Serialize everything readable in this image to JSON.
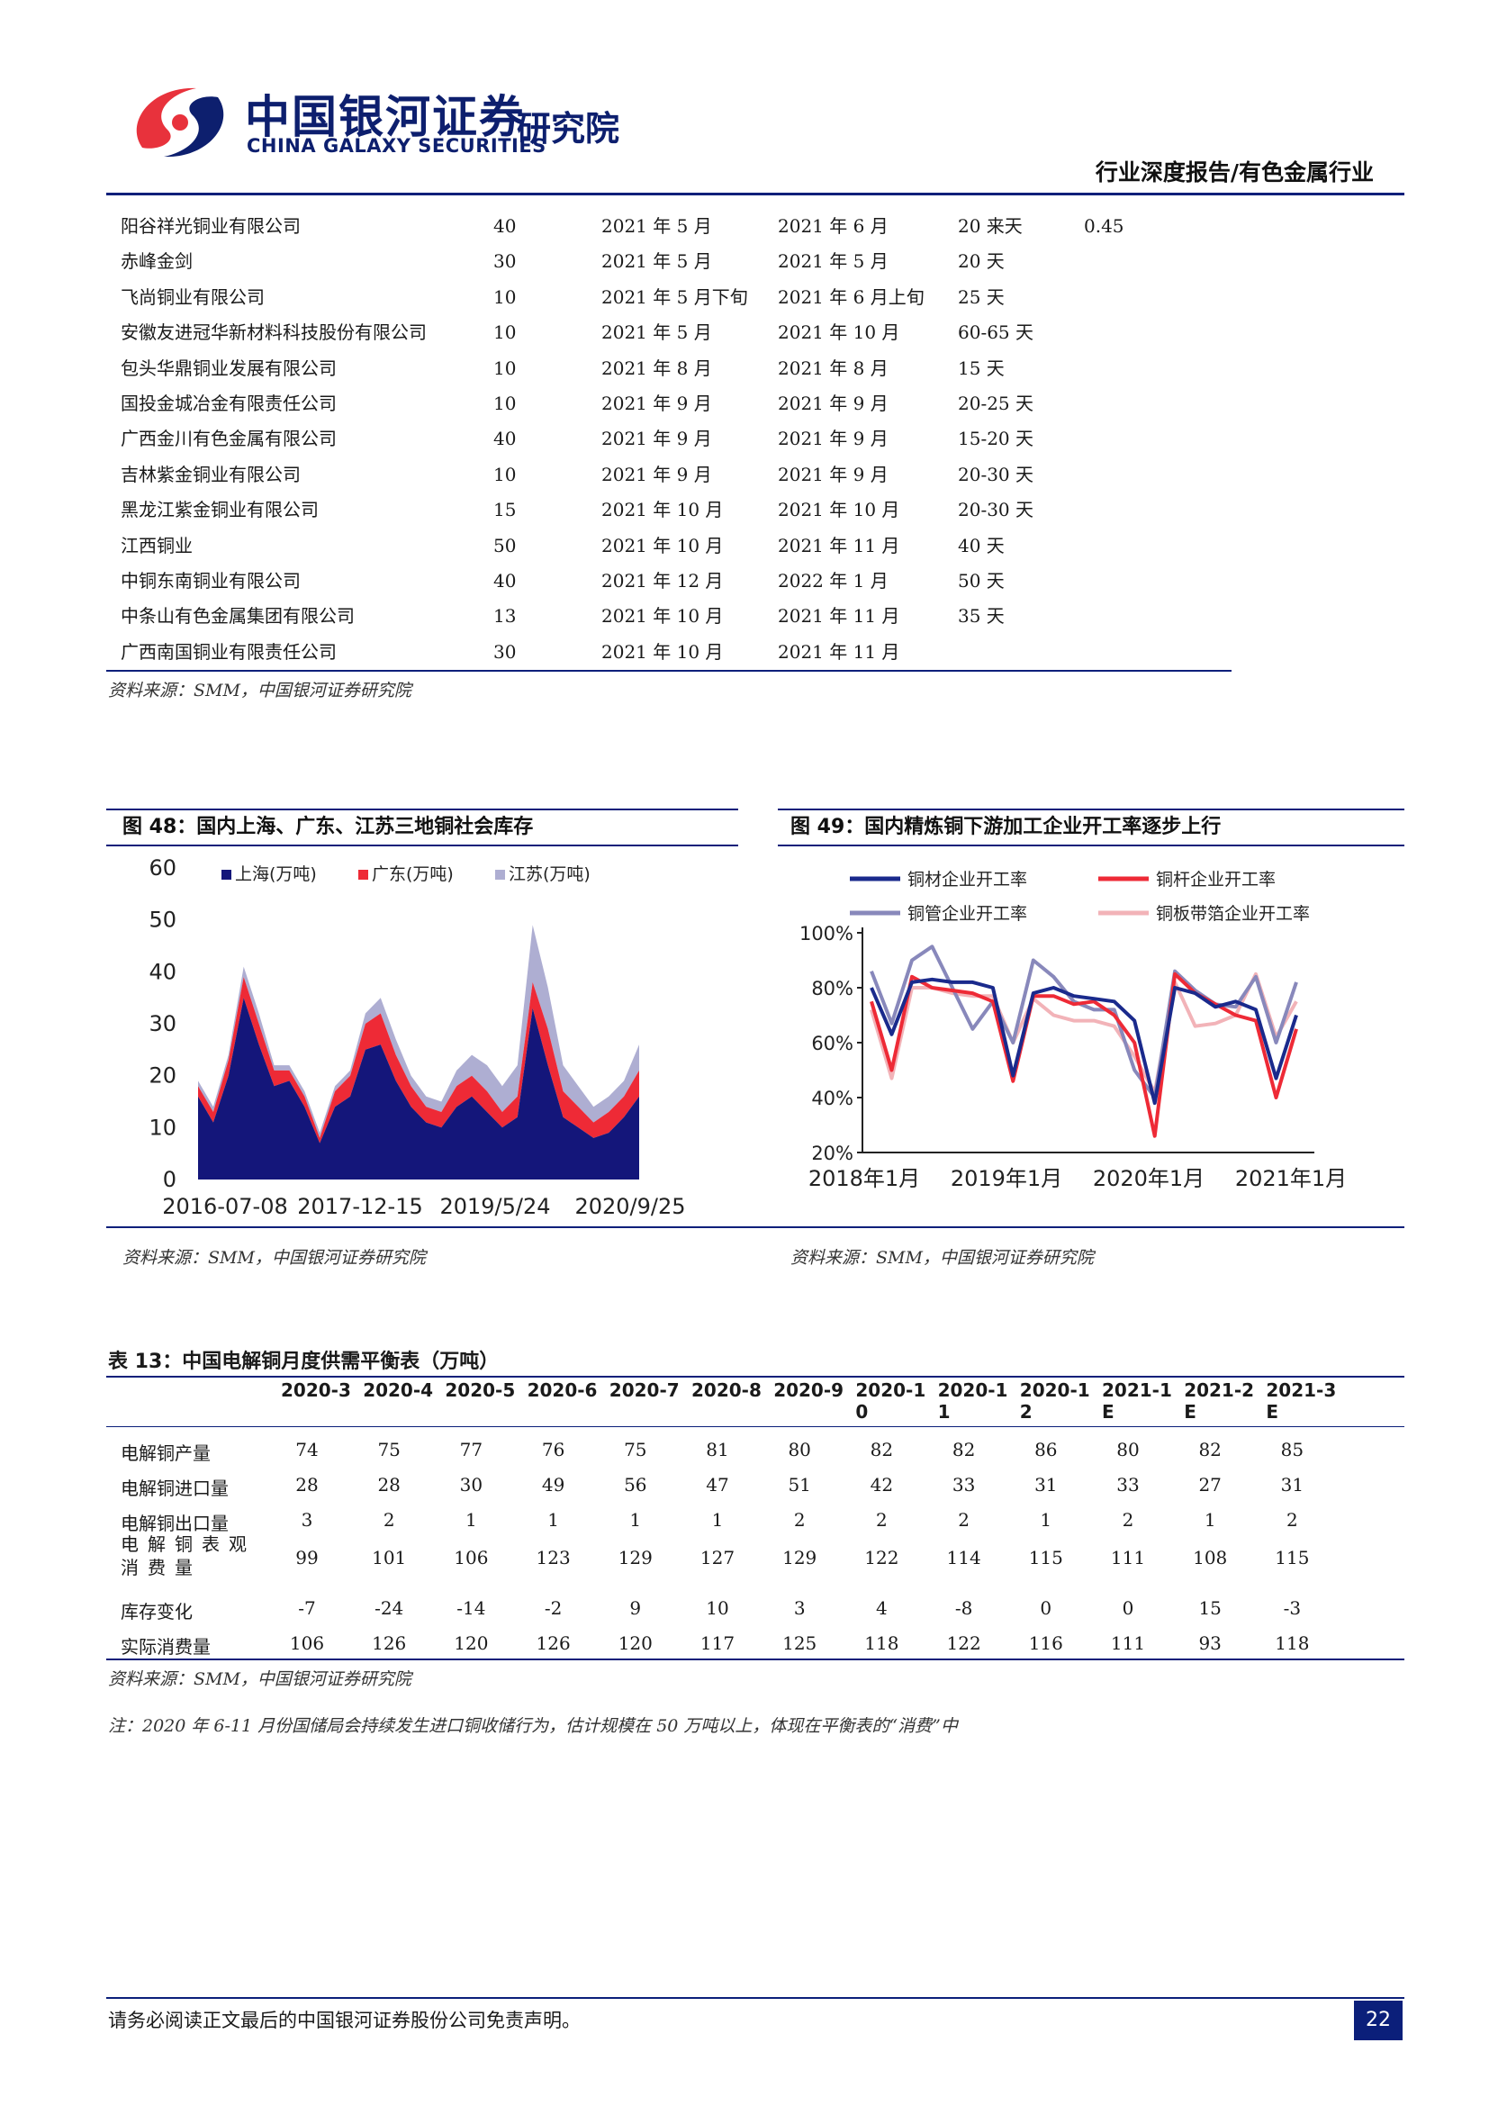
{
  "header": {
    "brand_cn": "中国银河证券",
    "brand_en": "CHINA GALAXY SECURITIES",
    "institute": "研究院",
    "report_type": "行业深度报告/有色金属行业"
  },
  "project_table": {
    "rows": [
      [
        "阳谷祥光铜业有限公司",
        "40",
        "2021 年 5 月",
        "2021 年 6 月",
        "20 来天",
        "0.45"
      ],
      [
        "赤峰金剑",
        "30",
        "2021 年 5 月",
        "2021 年 5 月",
        "20 天",
        ""
      ],
      [
        "飞尚铜业有限公司",
        "10",
        "2021 年 5 月下旬",
        "2021 年 6 月上旬",
        "25 天",
        ""
      ],
      [
        "安徽友进冠华新材料科技股份有限公司",
        "10",
        "2021 年 5 月",
        "2021 年 10 月",
        "60-65 天",
        ""
      ],
      [
        "包头华鼎铜业发展有限公司",
        "10",
        "2021 年 8 月",
        "2021 年 8 月",
        "15 天",
        ""
      ],
      [
        "国投金城冶金有限责任公司",
        "10",
        "2021 年 9 月",
        "2021 年 9 月",
        "20-25 天",
        ""
      ],
      [
        "广西金川有色金属有限公司",
        "40",
        "2021 年 9 月",
        "2021 年 9 月",
        "15-20 天",
        ""
      ],
      [
        "吉林紫金铜业有限公司",
        "10",
        "2021 年 9 月",
        "2021 年 9 月",
        "20-30 天",
        ""
      ],
      [
        "黑龙江紫金铜业有限公司",
        "15",
        "2021 年 10 月",
        "2021 年 10 月",
        "20-30 天",
        ""
      ],
      [
        "江西铜业",
        "50",
        "2021 年 10 月",
        "2021 年 11 月",
        "40 天",
        ""
      ],
      [
        "中铜东南铜业有限公司",
        "40",
        "2021 年 12 月",
        "2022 年 1 月",
        "50 天",
        ""
      ],
      [
        "中条山有色金属集团有限公司",
        "13",
        "2021 年 10 月",
        "2021 年 11 月",
        "35 天",
        ""
      ],
      [
        "广西南国铜业有限责任公司",
        "30",
        "2021 年 10 月",
        "2021 年 11 月",
        "",
        ""
      ]
    ],
    "source": "资料来源：SMM，中国银河证券研究院"
  },
  "fig48": {
    "title": "图 48：国内上海、广东、江苏三地铜社会库存",
    "source": "资料来源：SMM，中国银河证券研究院"
  },
  "fig49": {
    "title": "图 49：国内精炼铜下游加工企业开工率逐步上行",
    "source": "资料来源：SMM，中国银河证券研究院"
  },
  "chart_data": [
    {
      "type": "area",
      "stacked": true,
      "title": "",
      "x_tick_labels": [
        "2016-07-08",
        "2017-12-15",
        "2019/5/24",
        "2020/9/25"
      ],
      "y_ticks": [
        0,
        10,
        20,
        30,
        40,
        50,
        60
      ],
      "ylim": [
        0,
        60
      ],
      "legend_position": "top",
      "x": [
        "2016-07",
        "2016-09",
        "2016-11",
        "2017-01",
        "2017-03",
        "2017-05",
        "2017-07",
        "2017-09",
        "2017-11",
        "2018-01",
        "2018-03",
        "2018-05",
        "2018-07",
        "2018-09",
        "2018-11",
        "2019-01",
        "2019-03",
        "2019-05",
        "2019-07",
        "2019-09",
        "2019-11",
        "2020-01",
        "2020-03",
        "2020-05",
        "2020-07",
        "2020-09",
        "2020-11",
        "2021-01",
        "2021-03",
        "2021-05"
      ],
      "series": [
        {
          "name": "上海(万吨)",
          "color": "#14167a",
          "values": [
            16,
            11,
            20,
            35,
            26,
            18,
            19,
            14,
            7,
            14,
            16,
            25,
            26,
            19,
            14,
            11,
            10,
            14,
            16,
            13,
            10,
            12,
            33,
            22,
            12,
            10,
            8,
            9,
            12,
            16
          ]
        },
        {
          "name": "广东(万吨)",
          "color": "#ee2a36",
          "values": [
            2,
            2,
            3,
            4,
            4,
            3,
            2,
            2,
            1,
            3,
            4,
            5,
            6,
            5,
            4,
            3,
            3,
            4,
            4,
            4,
            3,
            4,
            5,
            7,
            5,
            4,
            3,
            4,
            4,
            5
          ]
        },
        {
          "name": "江苏(万吨)",
          "color": "#aeaed2",
          "values": [
            1,
            1,
            1,
            2,
            2,
            1,
            1,
            1,
            1,
            1,
            1,
            2,
            3,
            3,
            2,
            2,
            2,
            3,
            4,
            5,
            5,
            6,
            11,
            8,
            5,
            4,
            3,
            3,
            3,
            5
          ]
        }
      ]
    },
    {
      "type": "line",
      "title": "",
      "x_tick_labels": [
        "2018年1月",
        "2019年1月",
        "2020年1月",
        "2021年1月"
      ],
      "y_tick_labels": [
        "20%",
        "40%",
        "60%",
        "80%",
        "100%"
      ],
      "ylim": [
        20,
        100
      ],
      "legend_position": "top",
      "x": [
        "2018-01",
        "2018-03",
        "2018-05",
        "2018-07",
        "2018-09",
        "2018-11",
        "2019-01",
        "2019-03",
        "2019-05",
        "2019-07",
        "2019-09",
        "2019-11",
        "2020-01",
        "2020-02",
        "2020-03",
        "2020-05",
        "2020-07",
        "2020-09",
        "2020-11",
        "2021-01",
        "2021-02",
        "2021-03"
      ],
      "series": [
        {
          "name": "铜材企业开工率",
          "color": "#1a2a8c",
          "values": [
            80,
            63,
            82,
            83,
            82,
            82,
            80,
            48,
            78,
            80,
            77,
            76,
            75,
            68,
            38,
            80,
            78,
            73,
            75,
            72,
            47,
            70
          ]
        },
        {
          "name": "铜杆企业开工率",
          "color": "#ee2a36",
          "values": [
            75,
            50,
            84,
            80,
            79,
            78,
            75,
            46,
            77,
            77,
            74,
            75,
            70,
            60,
            26,
            85,
            78,
            74,
            70,
            68,
            40,
            65
          ]
        },
        {
          "name": "铜管企业开工率",
          "color": "#8888bb",
          "values": [
            86,
            67,
            90,
            95,
            80,
            65,
            75,
            60,
            90,
            84,
            75,
            72,
            72,
            50,
            40,
            86,
            79,
            74,
            73,
            84,
            60,
            82
          ]
        },
        {
          "name": "铜板带箔企业开工率",
          "color": "#f2b3b8",
          "values": [
            72,
            47,
            80,
            80,
            78,
            77,
            77,
            60,
            76,
            70,
            68,
            68,
            66,
            55,
            42,
            82,
            66,
            67,
            70,
            85,
            62,
            75
          ]
        }
      ]
    }
  ],
  "table13": {
    "title": "表 13：中国电解铜月度供需平衡表（万吨）",
    "columns": [
      "2020-3",
      "2020-4",
      "2020-5",
      "2020-6",
      "2020-7",
      "2020-8",
      "2020-9",
      "2020-10",
      "2020-11",
      "2020-12",
      "2021-1E",
      "2021-2E",
      "2021-3E"
    ],
    "rows": [
      {
        "label": "电解铜产量",
        "values": [
          "74",
          "75",
          "77",
          "76",
          "75",
          "81",
          "80",
          "82",
          "82",
          "86",
          "80",
          "82",
          "85"
        ]
      },
      {
        "label": "电解铜进口量",
        "values": [
          "28",
          "28",
          "30",
          "49",
          "56",
          "47",
          "51",
          "42",
          "33",
          "31",
          "33",
          "27",
          "31"
        ]
      },
      {
        "label": "电解铜出口量",
        "values": [
          "3",
          "2",
          "1",
          "1",
          "1",
          "1",
          "2",
          "2",
          "2",
          "1",
          "2",
          "1",
          "2"
        ]
      },
      {
        "label": "电解铜表观消费量",
        "values": [
          "99",
          "101",
          "106",
          "123",
          "129",
          "127",
          "129",
          "122",
          "114",
          "115",
          "111",
          "108",
          "115"
        ]
      },
      {
        "label": "库存变化",
        "values": [
          "-7",
          "-24",
          "-14",
          "-2",
          "9",
          "10",
          "3",
          "4",
          "-8",
          "0",
          "0",
          "15",
          "-3"
        ]
      },
      {
        "label": "实际消费量",
        "values": [
          "106",
          "126",
          "120",
          "126",
          "120",
          "117",
          "125",
          "118",
          "122",
          "116",
          "111",
          "93",
          "118"
        ]
      }
    ],
    "source": "资料来源：SMM，中国银河证券研究院",
    "note": "注：2020 年 6-11 月份国储局会持续发生进口铜收储行为，估计规模在 50 万吨以上，体现在平衡表的“消费”中"
  },
  "footer": {
    "disclaimer": "请务必阅读正文最后的中国银河证券股份公司免责声明。",
    "page_number": "22"
  },
  "colors": {
    "navy": "#0b1f7a",
    "red": "#e8323c"
  }
}
